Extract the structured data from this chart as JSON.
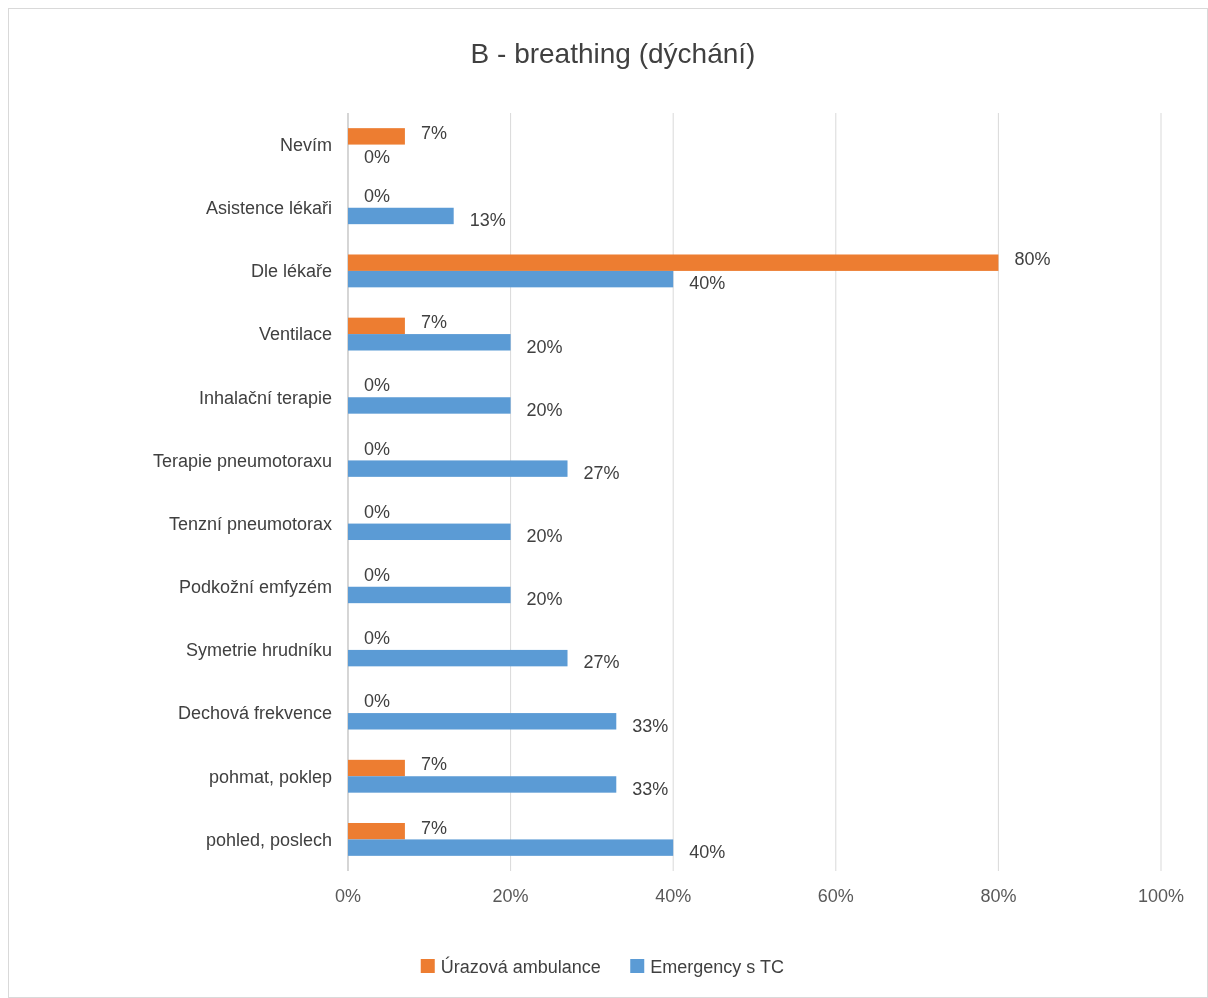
{
  "chart_data": {
    "type": "bar",
    "orientation": "horizontal",
    "title": "B - breathing (dýchání)",
    "categories": [
      "Nevím",
      "Asistence lékaři",
      "Dle lékaře",
      "Ventilace",
      "Inhalační terapie",
      "Terapie pneumotoraxu",
      "Tenzní pneumotorax",
      "Podkožní emfyzém",
      "Symetrie hrudníku",
      "Dechová frekvence",
      "pohmat, poklep",
      "pohled, poslech"
    ],
    "series": [
      {
        "name": "Úrazová ambulance",
        "color": "#ed7d31",
        "values": [
          7,
          0,
          80,
          7,
          0,
          0,
          0,
          0,
          0,
          0,
          7,
          7
        ],
        "value_labels": [
          "7%",
          "0%",
          "80%",
          "7%",
          "0%",
          "0%",
          "0%",
          "0%",
          "0%",
          "0%",
          "7%",
          "7%"
        ]
      },
      {
        "name": "Emergency s TC",
        "color": "#5b9bd5",
        "values": [
          0,
          13,
          40,
          20,
          20,
          27,
          20,
          20,
          27,
          33,
          33,
          40
        ],
        "value_labels": [
          "0%",
          "13%",
          "40%",
          "20%",
          "20%",
          "27%",
          "20%",
          "20%",
          "27%",
          "33%",
          "33%",
          "40%"
        ]
      }
    ],
    "xlim": [
      0,
      100
    ],
    "xticks": [
      {
        "value": 0,
        "label": "0%"
      },
      {
        "value": 20,
        "label": "20%"
      },
      {
        "value": 40,
        "label": "40%"
      },
      {
        "value": 60,
        "label": "60%"
      },
      {
        "value": 80,
        "label": "80%"
      },
      {
        "value": 100,
        "label": "100%"
      }
    ],
    "grid": "x",
    "legend": "bottom"
  }
}
